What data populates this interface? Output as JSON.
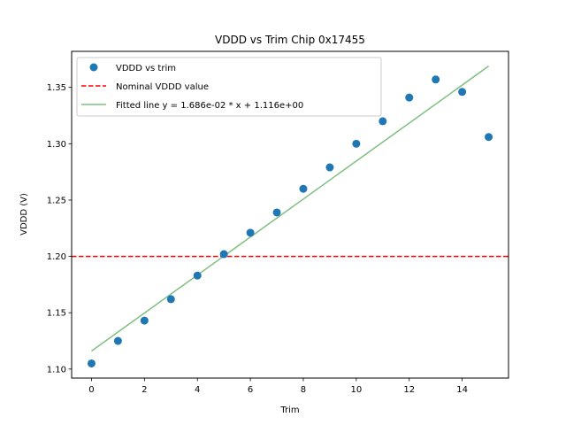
{
  "chart_data": {
    "type": "scatter",
    "title": "VDDD vs Trim Chip 0x17455",
    "xlabel": "Trim",
    "ylabel": "VDDD (V)",
    "xlim": [
      -0.75,
      15.75
    ],
    "ylim": [
      1.092,
      1.382
    ],
    "xticks": [
      0,
      2,
      4,
      6,
      8,
      10,
      12,
      14
    ],
    "xtick_labels": [
      "0",
      "2",
      "4",
      "6",
      "8",
      "10",
      "12",
      "14"
    ],
    "yticks": [
      1.1,
      1.15,
      1.2,
      1.25,
      1.3,
      1.35
    ],
    "ytick_labels": [
      "1.10",
      "1.15",
      "1.20",
      "1.25",
      "1.30",
      "1.35"
    ],
    "grid": false,
    "legend_position": "top-left",
    "series": [
      {
        "name": "VDDD vs trim",
        "kind": "scatter",
        "color": "#1f77b4",
        "x": [
          0,
          1,
          2,
          3,
          4,
          5,
          6,
          7,
          8,
          9,
          10,
          11,
          12,
          13,
          14,
          15
        ],
        "y": [
          1.105,
          1.125,
          1.143,
          1.162,
          1.183,
          1.202,
          1.221,
          1.239,
          1.26,
          1.279,
          1.3,
          1.32,
          1.341,
          1.357,
          1.346,
          1.306
        ]
      },
      {
        "name": "Nominal VDDD value",
        "kind": "hline",
        "color": "#ff0000",
        "linestyle": "dashed",
        "y": 1.2
      },
      {
        "name": "Fitted line y = 1.686e-02 * x + 1.116e+00",
        "kind": "line",
        "color": "#7fbf7f",
        "slope": 0.01686,
        "intercept": 1.116,
        "x": [
          0,
          15
        ]
      }
    ]
  }
}
